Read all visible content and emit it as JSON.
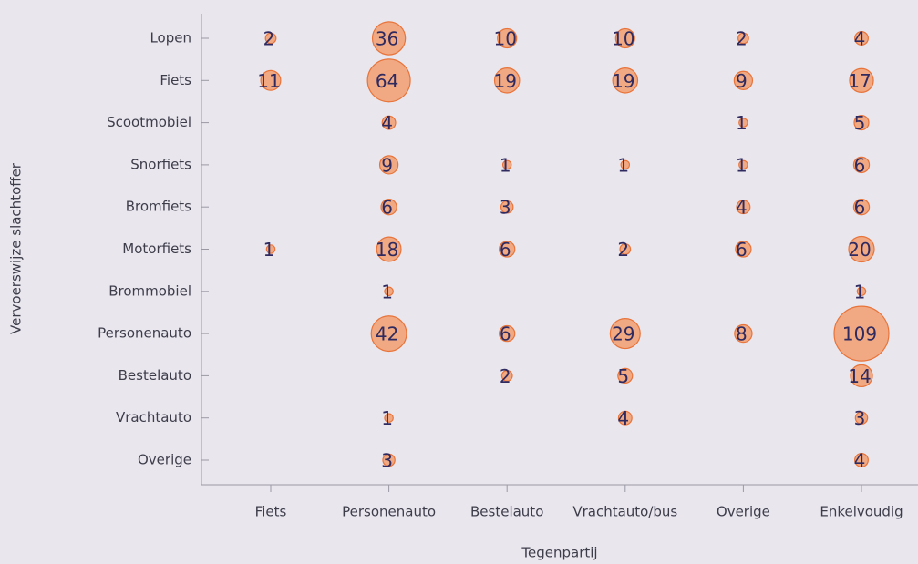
{
  "chart_data": {
    "type": "bubble-grid",
    "x_label": "Tegenpartij",
    "y_label": "Vervoerswijze slachtoffer",
    "x_categories": [
      "Fiets",
      "Personenauto",
      "Bestelauto",
      "Vrachtauto/bus",
      "Overige",
      "Enkelvoudig"
    ],
    "y_categories": [
      "Lopen",
      "Fiets",
      "Scootmobiel",
      "Snorfiets",
      "Bromfiets",
      "Motorfiets",
      "Brommobiel",
      "Personenauto",
      "Bestelauto",
      "Vrachtauto",
      "Overige"
    ],
    "values": [
      [
        2,
        36,
        10,
        10,
        2,
        4
      ],
      [
        11,
        64,
        19,
        19,
        9,
        17
      ],
      [
        null,
        4,
        null,
        null,
        1,
        5
      ],
      [
        null,
        9,
        1,
        1,
        1,
        6
      ],
      [
        null,
        6,
        3,
        null,
        4,
        6
      ],
      [
        1,
        18,
        6,
        2,
        6,
        20
      ],
      [
        null,
        1,
        null,
        null,
        null,
        1
      ],
      [
        null,
        42,
        6,
        29,
        8,
        109
      ],
      [
        null,
        null,
        2,
        5,
        null,
        14
      ],
      [
        null,
        1,
        null,
        4,
        null,
        3
      ],
      [
        null,
        3,
        null,
        null,
        null,
        4
      ]
    ],
    "color": "#f0a983",
    "edge_color": "#e8743a"
  }
}
